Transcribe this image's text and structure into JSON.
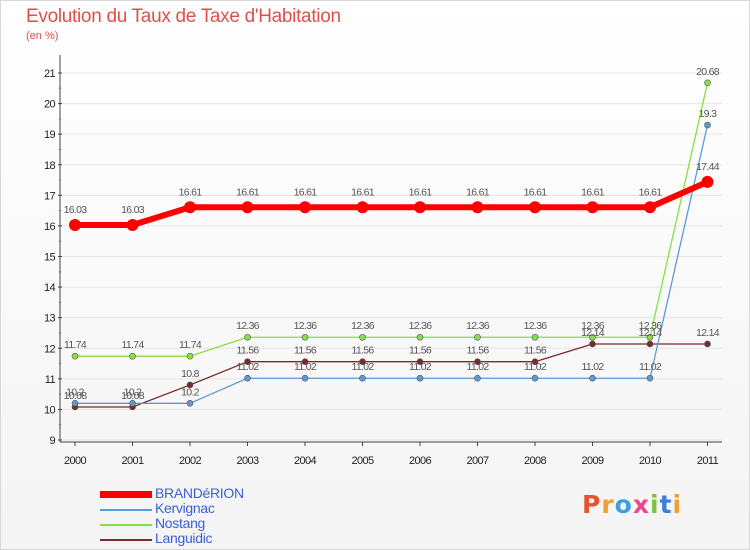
{
  "chart_data": {
    "type": "line",
    "title": "Evolution du Taux de Taxe d'Habitation",
    "subtitle": "(en %)",
    "xlabel": "",
    "ylabel": "",
    "categories": [
      "2000",
      "2001",
      "2002",
      "2003",
      "2004",
      "2005",
      "2006",
      "2007",
      "2008",
      "2009",
      "2010",
      "2011"
    ],
    "ylim": [
      9,
      21
    ],
    "yticks": [
      9,
      10,
      11,
      12,
      13,
      14,
      15,
      16,
      17,
      18,
      19,
      20,
      21
    ],
    "series": [
      {
        "name": "BRANDéRION",
        "color": "#ff0000",
        "values": [
          16.03,
          16.03,
          16.61,
          16.61,
          16.61,
          16.61,
          16.61,
          16.61,
          16.61,
          16.61,
          16.61,
          17.44
        ],
        "labels": [
          "16.03",
          "16.03",
          "16.61",
          "16.61",
          "16.61",
          "16.61",
          "16.61",
          "16.61",
          "16.61",
          "16.61",
          "16.61",
          "17.44"
        ]
      },
      {
        "name": "Kervignac",
        "color": "#5b9bd5",
        "values": [
          10.2,
          10.2,
          10.2,
          11.02,
          11.02,
          11.02,
          11.02,
          11.02,
          11.02,
          11.02,
          11.02,
          19.3
        ],
        "labels": [
          "10.2",
          "10.2",
          "10.2",
          "11.02",
          "11.02",
          "11.02",
          "11.02",
          "11.02",
          "11.02",
          "11.02",
          "11.02",
          "19.3"
        ]
      },
      {
        "name": "Nostang",
        "color": "#88e040",
        "values": [
          11.74,
          11.74,
          11.74,
          12.36,
          12.36,
          12.36,
          12.36,
          12.36,
          12.36,
          12.36,
          12.36,
          20.68
        ],
        "labels": [
          "11.74",
          "11.74",
          "11.74",
          "12.36",
          "12.36",
          "12.36",
          "12.36",
          "12.36",
          "12.36",
          "12.36",
          "12.36",
          "20.68"
        ]
      },
      {
        "name": "Languidic",
        "color": "#7a2a2a",
        "values": [
          10.08,
          10.08,
          10.8,
          11.56,
          11.56,
          11.56,
          11.56,
          11.56,
          11.56,
          12.14,
          12.14,
          12.14
        ],
        "labels": [
          "10.08",
          "10.08",
          "10.8",
          "11.56",
          "11.56",
          "11.56",
          "11.56",
          "11.56",
          "11.56",
          "12.14",
          "12.14",
          "12.14"
        ]
      }
    ],
    "legend_position": "bottom-left"
  },
  "logo": {
    "letters": [
      "P",
      "r",
      "o",
      "x",
      "i",
      "t",
      "i"
    ],
    "colors": [
      "#e8522c",
      "#f0a030",
      "#3aa0e0",
      "#e84a8c",
      "#7cc242",
      "#3a7fd9",
      "#f0a030"
    ]
  }
}
